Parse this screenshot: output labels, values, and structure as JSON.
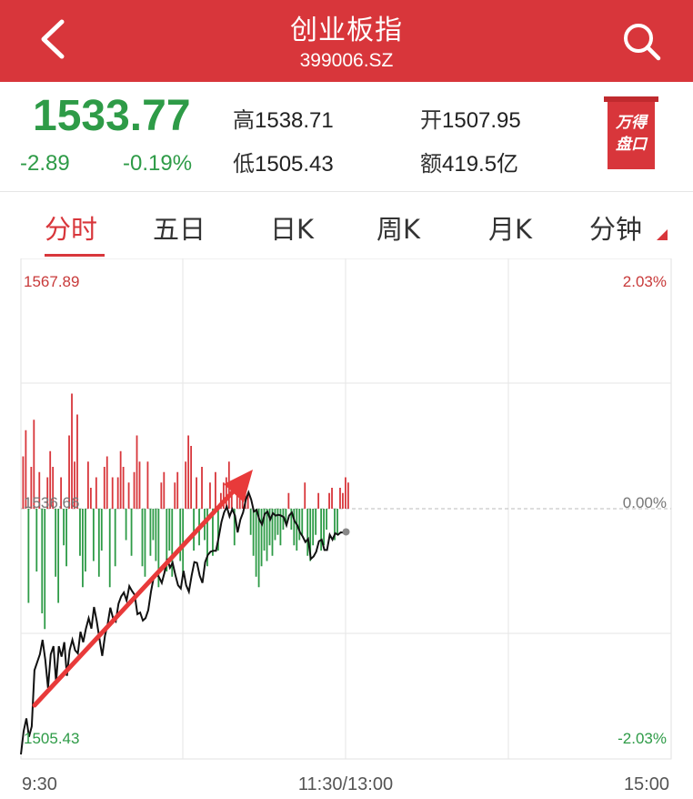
{
  "header": {
    "title": "创业板指",
    "subtitle": "399006.SZ"
  },
  "quote": {
    "price": "1533.77",
    "change": "-2.89",
    "change_pct": "-0.19%",
    "high_label": "高",
    "high": "1538.71",
    "open_label": "开",
    "open": "1507.95",
    "low_label": "低",
    "low": "1505.43",
    "amount_label": "额",
    "amount": "419.5亿",
    "pankou_line1": "万得",
    "pankou_line2": "盘口"
  },
  "tabs": [
    {
      "label": "分时",
      "active": true
    },
    {
      "label": "五日"
    },
    {
      "label": "日K"
    },
    {
      "label": "周K"
    },
    {
      "label": "月K"
    },
    {
      "label": "分钟"
    }
  ],
  "colors": {
    "accent": "#d8363b",
    "up": "#d8363b",
    "down": "#2e9b47",
    "price_line": "#111111"
  },
  "chart_data": {
    "type": "line",
    "y_max_label": "1567.89",
    "y_min_label": "1505.43",
    "y_mid_label": "1536.66",
    "pct_max_label": "2.03%",
    "pct_zero_label": "0.00%",
    "pct_min_label": "-2.03%",
    "ylim": [
      1505.43,
      1567.89
    ],
    "prev_close": 1536.66,
    "x_ticks": [
      "9:30",
      "11:30/13:00",
      "15:00"
    ],
    "total_minutes": 240,
    "price_series": [
      [
        0,
        1506.0
      ],
      [
        1,
        1508.9
      ],
      [
        2,
        1510.5
      ],
      [
        3,
        1508.2
      ],
      [
        4,
        1509.5
      ],
      [
        5,
        1516.5
      ],
      [
        6,
        1517.5
      ],
      [
        7,
        1518.5
      ],
      [
        8,
        1520.3
      ],
      [
        9,
        1517.8
      ],
      [
        10,
        1514.3
      ],
      [
        11,
        1518.5
      ],
      [
        12,
        1519.5
      ],
      [
        13,
        1515.0
      ],
      [
        14,
        1519.5
      ],
      [
        15,
        1518.2
      ],
      [
        16,
        1520.0
      ],
      [
        17,
        1515.8
      ],
      [
        18,
        1519.0
      ],
      [
        19,
        1520.3
      ],
      [
        20,
        1519.0
      ],
      [
        21,
        1518.6
      ],
      [
        22,
        1521.3
      ],
      [
        23,
        1520.0
      ],
      [
        24,
        1521.7
      ],
      [
        25,
        1523.0
      ],
      [
        26,
        1521.7
      ],
      [
        27,
        1524.4
      ],
      [
        28,
        1522.6
      ],
      [
        29,
        1520.4
      ],
      [
        30,
        1518.3
      ],
      [
        31,
        1520.8
      ],
      [
        32,
        1522.2
      ],
      [
        33,
        1524.3
      ],
      [
        34,
        1523.0
      ],
      [
        35,
        1522.6
      ],
      [
        36,
        1524.8
      ],
      [
        37,
        1525.7
      ],
      [
        38,
        1526.2
      ],
      [
        39,
        1525.2
      ],
      [
        40,
        1527.0
      ],
      [
        41,
        1526.4
      ],
      [
        42,
        1525.9
      ],
      [
        43,
        1523.5
      ],
      [
        44,
        1523.7
      ],
      [
        45,
        1522.7
      ],
      [
        46,
        1523.0
      ],
      [
        47,
        1524.0
      ],
      [
        48,
        1526.3
      ],
      [
        49,
        1528.1
      ],
      [
        50,
        1528.6
      ],
      [
        51,
        1528.1
      ],
      [
        52,
        1527.4
      ],
      [
        53,
        1528.7
      ],
      [
        54,
        1530.4
      ],
      [
        55,
        1529.3
      ],
      [
        56,
        1529.9
      ],
      [
        57,
        1528.4
      ],
      [
        58,
        1527.1
      ],
      [
        59,
        1526.7
      ],
      [
        60,
        1528.9
      ],
      [
        61,
        1527.1
      ],
      [
        62,
        1526.3
      ],
      [
        63,
        1528.3
      ],
      [
        64,
        1530.0
      ],
      [
        65,
        1529.9
      ],
      [
        66,
        1528.3
      ],
      [
        67,
        1527.4
      ],
      [
        68,
        1530.0
      ],
      [
        69,
        1530.9
      ],
      [
        70,
        1531.3
      ],
      [
        71,
        1531.4
      ],
      [
        72,
        1531.4
      ],
      [
        73,
        1533.1
      ],
      [
        74,
        1535.0
      ],
      [
        75,
        1536.2
      ],
      [
        76,
        1536.9
      ],
      [
        77,
        1535.7
      ],
      [
        78,
        1536.6
      ],
      [
        79,
        1535.8
      ],
      [
        80,
        1533.7
      ],
      [
        81,
        1535.3
      ],
      [
        82,
        1536.2
      ],
      [
        83,
        1537.8
      ],
      [
        84,
        1538.7
      ],
      [
        85,
        1537.8
      ],
      [
        86,
        1536.3
      ],
      [
        87,
        1536.5
      ],
      [
        88,
        1535.3
      ],
      [
        89,
        1534.7
      ],
      [
        90,
        1536.0
      ],
      [
        91,
        1536.3
      ],
      [
        92,
        1535.3
      ],
      [
        93,
        1536.1
      ],
      [
        94,
        1535.8
      ],
      [
        95,
        1535.9
      ],
      [
        96,
        1535.8
      ],
      [
        97,
        1535.6
      ],
      [
        98,
        1534.6
      ],
      [
        99,
        1535.8
      ],
      [
        100,
        1536.2
      ],
      [
        101,
        1535.1
      ],
      [
        102,
        1534.6
      ],
      [
        103,
        1533.7
      ],
      [
        104,
        1533.2
      ],
      [
        105,
        1532.5
      ],
      [
        106,
        1532.9
      ],
      [
        107,
        1530.4
      ],
      [
        108,
        1530.7
      ],
      [
        109,
        1531.3
      ],
      [
        110,
        1532.6
      ],
      [
        111,
        1532.8
      ],
      [
        112,
        1531.5
      ],
      [
        113,
        1531.5
      ],
      [
        114,
        1533.4
      ],
      [
        115,
        1532.8
      ],
      [
        116,
        1533.6
      ],
      [
        117,
        1533.4
      ],
      [
        118,
        1533.7
      ],
      [
        119,
        1533.7
      ],
      [
        120,
        1533.77
      ]
    ],
    "volume_bars": [
      [
        0,
        5.0
      ],
      [
        1,
        7.5
      ],
      [
        2,
        -9.0
      ],
      [
        3,
        4.0
      ],
      [
        4,
        8.5
      ],
      [
        5,
        -6.0
      ],
      [
        6,
        3.5
      ],
      [
        7,
        -10.0
      ],
      [
        8,
        -11.5
      ],
      [
        9,
        3.0
      ],
      [
        10,
        5.5
      ],
      [
        11,
        4.0
      ],
      [
        12,
        -6.5
      ],
      [
        13,
        -9.0
      ],
      [
        14,
        3.0
      ],
      [
        15,
        -3.5
      ],
      [
        16,
        -5.5
      ],
      [
        17,
        7.0
      ],
      [
        18,
        11.0
      ],
      [
        19,
        4.5
      ],
      [
        20,
        9.0
      ],
      [
        21,
        -4.5
      ],
      [
        22,
        -7.5
      ],
      [
        23,
        -6.0
      ],
      [
        24,
        4.5
      ],
      [
        25,
        2.0
      ],
      [
        26,
        -5.0
      ],
      [
        27,
        3.0
      ],
      [
        28,
        -6.5
      ],
      [
        29,
        -4.0
      ],
      [
        30,
        4.0
      ],
      [
        31,
        5.0
      ],
      [
        32,
        -7.5
      ],
      [
        33,
        3.0
      ],
      [
        34,
        -5.5
      ],
      [
        35,
        3.0
      ],
      [
        36,
        5.5
      ],
      [
        37,
        4.0
      ],
      [
        38,
        -3.0
      ],
      [
        39,
        2.5
      ],
      [
        40,
        -4.5
      ],
      [
        41,
        3.5
      ],
      [
        42,
        7.0
      ],
      [
        43,
        4.5
      ],
      [
        44,
        -5.5
      ],
      [
        45,
        -6.5
      ],
      [
        46,
        4.5
      ],
      [
        47,
        -4.5
      ],
      [
        48,
        -3.0
      ],
      [
        49,
        -5.0
      ],
      [
        50,
        -7.5
      ],
      [
        51,
        2.5
      ],
      [
        52,
        3.5
      ],
      [
        53,
        -6.0
      ],
      [
        54,
        -4.0
      ],
      [
        55,
        -6.5
      ],
      [
        56,
        2.5
      ],
      [
        57,
        3.5
      ],
      [
        58,
        -5.0
      ],
      [
        59,
        -6.5
      ],
      [
        60,
        4.5
      ],
      [
        61,
        7.0
      ],
      [
        62,
        6.0
      ],
      [
        63,
        -4.0
      ],
      [
        64,
        3.0
      ],
      [
        65,
        -3.5
      ],
      [
        66,
        4.0
      ],
      [
        67,
        -3.0
      ],
      [
        68,
        -5.5
      ],
      [
        69,
        2.5
      ],
      [
        70,
        -4.5
      ],
      [
        71,
        3.5
      ],
      [
        72,
        -4.0
      ],
      [
        73,
        1.5
      ],
      [
        74,
        2.5
      ],
      [
        75,
        3.0
      ],
      [
        76,
        4.5
      ],
      [
        77,
        2.5
      ],
      [
        78,
        -3.5
      ],
      [
        79,
        2.0
      ],
      [
        80,
        1.5
      ],
      [
        81,
        3.0
      ],
      [
        82,
        2.0
      ],
      [
        83,
        1.5
      ],
      [
        84,
        -2.5
      ],
      [
        85,
        -4.5
      ],
      [
        86,
        -6.5
      ],
      [
        87,
        -7.5
      ],
      [
        88,
        -5.5
      ],
      [
        89,
        -4.0
      ],
      [
        90,
        -5.0
      ],
      [
        91,
        -3.5
      ],
      [
        92,
        -4.5
      ],
      [
        93,
        -3.0
      ],
      [
        94,
        -2.5
      ],
      [
        95,
        -3.5
      ],
      [
        96,
        -2.0
      ],
      [
        97,
        -1.5
      ],
      [
        98,
        1.5
      ],
      [
        99,
        -2.0
      ],
      [
        100,
        -3.5
      ],
      [
        101,
        -4.0
      ],
      [
        102,
        -3.0
      ],
      [
        103,
        -2.5
      ],
      [
        104,
        2.5
      ],
      [
        105,
        -4.5
      ],
      [
        106,
        -5.0
      ],
      [
        107,
        -3.5
      ],
      [
        108,
        -2.5
      ],
      [
        109,
        1.5
      ],
      [
        110,
        -4.0
      ],
      [
        111,
        -3.5
      ],
      [
        112,
        -2.0
      ],
      [
        113,
        1.5
      ],
      [
        114,
        2.0
      ],
      [
        115,
        -3.0
      ],
      [
        116,
        -2.5
      ],
      [
        117,
        2.0
      ],
      [
        118,
        1.5
      ],
      [
        119,
        3.0
      ],
      [
        120,
        2.5
      ]
    ]
  }
}
